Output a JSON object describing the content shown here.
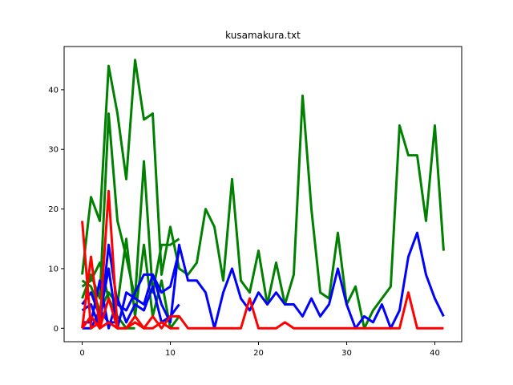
{
  "chart_data": {
    "type": "line",
    "title": "kusamakura.txt",
    "xlabel": "",
    "ylabel": "",
    "xlim": [
      -2.05,
      43.05
    ],
    "ylim": [
      -2.25,
      47.25
    ],
    "xticks": [
      0,
      10,
      20,
      30,
      40
    ],
    "yticks": [
      0,
      10,
      20,
      30,
      40
    ],
    "grid": false,
    "legend": "none",
    "series": [
      {
        "color": "#008000",
        "x": [
          0,
          1,
          2,
          3,
          4,
          5,
          6,
          7,
          8,
          9,
          10,
          11,
          12,
          13,
          14,
          15,
          16,
          17,
          18,
          19,
          20,
          21,
          22,
          23,
          24,
          25,
          26,
          27,
          28,
          29,
          30,
          31,
          32,
          33,
          34,
          35,
          36,
          37,
          38,
          39,
          40,
          41
        ],
        "values": [
          9,
          22,
          18,
          44,
          36,
          25,
          45,
          35,
          36,
          9,
          17,
          10,
          9,
          11,
          20,
          17,
          8,
          25,
          8,
          6,
          13,
          4,
          11,
          4,
          9,
          39,
          20,
          6,
          5,
          16,
          4,
          7,
          0,
          3,
          5,
          7,
          34,
          29,
          29,
          18,
          34,
          13
        ]
      },
      {
        "color": "#008000",
        "x": [
          0,
          1,
          2,
          3,
          4,
          5,
          6,
          7,
          8,
          9,
          10,
          11
        ],
        "values": [
          5,
          9,
          5,
          36,
          18,
          12,
          5,
          28,
          6,
          14,
          14,
          15
        ]
      },
      {
        "color": "#008000",
        "x": [
          0,
          1,
          2,
          3,
          4,
          5,
          6,
          7,
          8,
          9,
          10,
          11
        ],
        "values": [
          8,
          7,
          3,
          6,
          4,
          15,
          2,
          14,
          2,
          8,
          0,
          2
        ]
      },
      {
        "color": "#008000",
        "x": [
          0,
          1,
          2,
          3,
          4,
          5,
          6
        ],
        "values": [
          7,
          8,
          11,
          5,
          2,
          0,
          0
        ]
      },
      {
        "color": "#0000ff",
        "x": [
          0,
          1,
          2,
          3,
          4,
          5,
          6,
          7,
          8,
          9,
          10,
          11,
          12,
          13,
          14,
          15,
          16,
          17,
          18,
          19,
          20,
          21,
          22,
          23,
          24,
          25,
          26,
          27,
          28,
          29,
          30,
          31,
          32,
          33,
          34,
          35,
          36,
          37,
          38,
          39,
          40,
          41
        ],
        "values": [
          3,
          4,
          0,
          14,
          4,
          3,
          6,
          9,
          9,
          4,
          1,
          14,
          8,
          8,
          6,
          0,
          6,
          10,
          5,
          3,
          6,
          4,
          6,
          4,
          4,
          2,
          5,
          2,
          4,
          10,
          4,
          0,
          2,
          1,
          4,
          0,
          3,
          12,
          16,
          9,
          5,
          2
        ]
      },
      {
        "color": "#0000ff",
        "x": [
          0,
          1,
          2,
          3,
          4,
          5,
          6,
          7,
          8,
          9,
          10,
          11
        ],
        "values": [
          4,
          6,
          2,
          10,
          0,
          6,
          5,
          4,
          9,
          6,
          7,
          13
        ]
      },
      {
        "color": "#0000ff",
        "x": [
          0,
          1,
          2,
          3,
          4,
          5,
          6,
          7,
          8,
          9,
          10,
          11
        ],
        "values": [
          1,
          1,
          8,
          0,
          5,
          1,
          4,
          3,
          7,
          1,
          2,
          4
        ]
      },
      {
        "color": "#0000ff",
        "x": [
          0,
          1,
          2,
          3,
          4
        ],
        "values": [
          0,
          0,
          3,
          1,
          1
        ]
      },
      {
        "color": "#ff0000",
        "x": [
          0,
          1,
          2,
          3,
          4,
          5,
          6,
          7,
          8,
          9,
          10,
          11,
          12,
          13,
          14,
          15,
          16,
          17,
          18,
          19,
          20,
          21,
          22,
          23,
          24,
          25,
          26,
          27,
          28,
          29,
          30,
          31,
          32,
          33,
          34,
          35,
          36,
          37,
          38,
          39,
          40,
          41
        ],
        "values": [
          18,
          0,
          1,
          23,
          0,
          0,
          2,
          0,
          2,
          0,
          2,
          2,
          0,
          0,
          0,
          0,
          0,
          0,
          0,
          5,
          0,
          0,
          0,
          1,
          0,
          0,
          0,
          0,
          0,
          0,
          0,
          0,
          0,
          0,
          0,
          0,
          0,
          6,
          0,
          0,
          0,
          0
        ]
      },
      {
        "color": "#ff0000",
        "x": [
          0,
          1,
          2,
          3,
          4,
          5,
          6,
          7,
          8,
          9,
          10,
          11
        ],
        "values": [
          0,
          12,
          0,
          5,
          0,
          0,
          1,
          0,
          0,
          1,
          0,
          0
        ]
      },
      {
        "color": "#ff0000",
        "x": [
          0,
          1,
          2,
          3,
          4
        ],
        "values": [
          0,
          2,
          0,
          1,
          0
        ]
      }
    ]
  }
}
